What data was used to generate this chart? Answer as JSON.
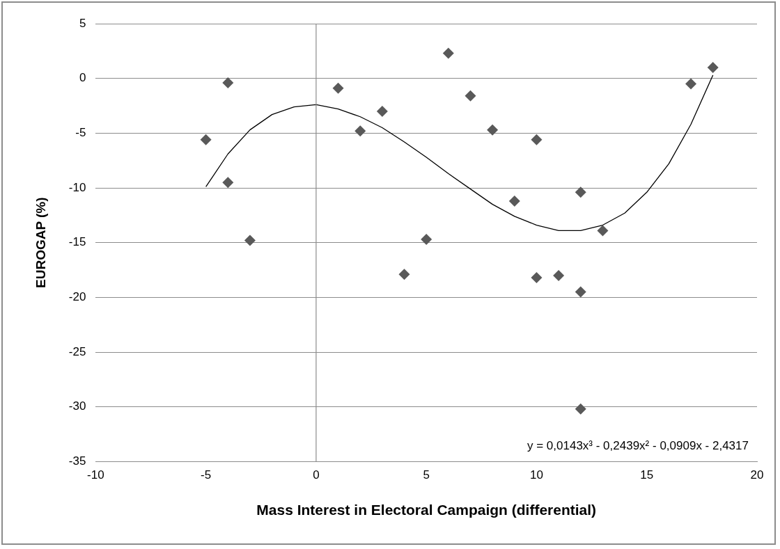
{
  "chart_data": {
    "type": "scatter",
    "xlabel": "Mass Interest in Electoral Campaign (differential)",
    "ylabel": "EUROGAP (%)",
    "xlim": [
      -10,
      20
    ],
    "xticks": [
      -10,
      -5,
      0,
      5,
      10,
      15,
      20
    ],
    "ylim": [
      -35,
      5
    ],
    "yticks": [
      -35,
      -30,
      -25,
      -20,
      -15,
      -10,
      -5,
      0,
      5
    ],
    "grid": "y",
    "legend": false,
    "marker": "diamond",
    "ref_lines": [
      {
        "axis": "x",
        "value": 0,
        "color": "#8c8c8c"
      }
    ],
    "annotations": [
      "y = 0,0143x³ - 0,2439x² - 0,0909x - 2,4317"
    ],
    "series": [
      {
        "type": "scatter",
        "color": "#595959",
        "x": [
          -5,
          -4,
          -4,
          -3,
          1,
          2,
          3,
          4,
          5,
          6,
          7,
          8,
          9,
          10,
          10,
          11,
          12,
          12,
          12,
          13,
          17,
          18
        ],
        "values": [
          -5.6,
          -0.4,
          -9.5,
          -14.8,
          -0.9,
          -4.8,
          -3.0,
          -17.9,
          -14.7,
          2.3,
          -1.6,
          -4.7,
          -11.2,
          -5.6,
          -18.2,
          -18.0,
          -10.4,
          -19.5,
          -30.2,
          -13.9,
          -0.5,
          1.0
        ]
      },
      {
        "type": "line",
        "color": "#000000",
        "marker": "none",
        "x": [
          -5,
          -4,
          -3,
          -2,
          -1,
          0,
          1,
          2,
          3,
          4,
          5,
          6,
          7,
          8,
          9,
          10,
          11,
          12,
          13,
          14,
          15,
          16,
          17,
          18
        ],
        "values": [
          -9.9,
          -6.9,
          -4.7,
          -3.3,
          -2.6,
          -2.4,
          -2.8,
          -3.5,
          -4.5,
          -5.8,
          -7.2,
          -8.7,
          -10.1,
          -11.5,
          -12.6,
          -13.4,
          -13.9,
          -13.9,
          -13.4,
          -12.3,
          -10.4,
          -7.8,
          -4.2,
          0.3
        ]
      }
    ]
  }
}
